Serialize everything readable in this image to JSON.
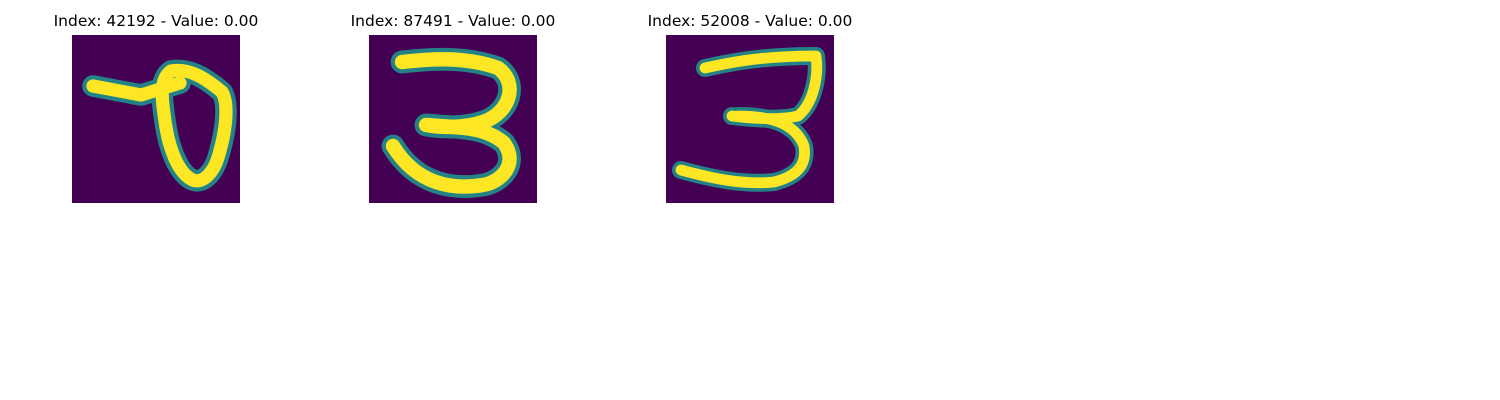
{
  "colors": {
    "background": "#440154",
    "mid": "#21918c",
    "light": "#5ec962",
    "foreground": "#fde725"
  },
  "panels": [
    {
      "title": "Index: 42192 - Value: 0.00",
      "digit_icon": "handwritten-digit-7-icon"
    },
    {
      "title": "Index: 87491 - Value: 0.00",
      "digit_icon": "handwritten-digit-3-icon"
    },
    {
      "title": "Index: 52008 - Value: 0.00",
      "digit_icon": "handwritten-digit-3-icon"
    }
  ]
}
